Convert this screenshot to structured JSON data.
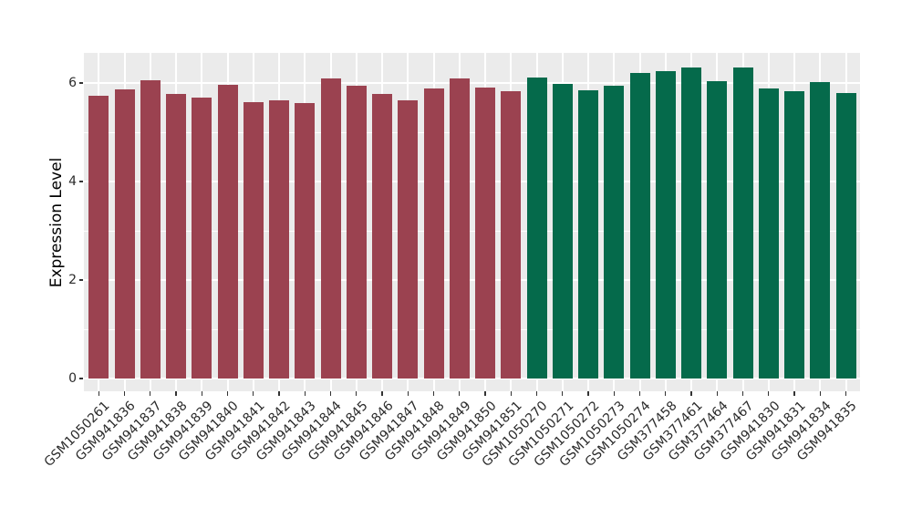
{
  "chart_data": {
    "type": "bar",
    "title": "",
    "xlabel": "",
    "ylabel": "Expression Level",
    "ylim": [
      0,
      6.6
    ],
    "y_ticks_major": [
      0,
      2,
      4,
      6
    ],
    "y_ticks_minor": [
      1,
      3,
      5
    ],
    "grid": "on",
    "legend": "none",
    "panel_bg": "#ebebeb",
    "grid_color": "#ffffff",
    "axis_text_color": "#2b2b2b",
    "tick_mark_color": "#333333",
    "group_colors": {
      "group1": "#9b4250",
      "group2": "#056a4b"
    },
    "categories": [
      "GSM1050261",
      "GSM941836",
      "GSM941837",
      "GSM941838",
      "GSM941839",
      "GSM941840",
      "GSM941841",
      "GSM941842",
      "GSM941843",
      "GSM941844",
      "GSM941845",
      "GSM941846",
      "GSM941847",
      "GSM941848",
      "GSM941849",
      "GSM941850",
      "GSM941851",
      "GSM1050270",
      "GSM1050271",
      "GSM1050272",
      "GSM1050273",
      "GSM1050274",
      "GSM377458",
      "GSM377461",
      "GSM377464",
      "GSM377467",
      "GSM941830",
      "GSM941831",
      "GSM941834",
      "GSM941835"
    ],
    "values": [
      5.75,
      5.87,
      6.06,
      5.77,
      5.71,
      5.96,
      5.61,
      5.65,
      5.6,
      6.09,
      5.94,
      5.78,
      5.64,
      5.89,
      6.1,
      5.91,
      5.84,
      6.11,
      5.98,
      5.86,
      5.94,
      6.21,
      6.24,
      6.32,
      6.04,
      6.32,
      5.88,
      5.83,
      6.01,
      5.8
    ],
    "bar_groups": [
      "group1",
      "group1",
      "group1",
      "group1",
      "group1",
      "group1",
      "group1",
      "group1",
      "group1",
      "group1",
      "group1",
      "group1",
      "group1",
      "group1",
      "group1",
      "group1",
      "group1",
      "group2",
      "group2",
      "group2",
      "group2",
      "group2",
      "group2",
      "group2",
      "group2",
      "group2",
      "group2",
      "group2",
      "group2",
      "group2"
    ]
  }
}
